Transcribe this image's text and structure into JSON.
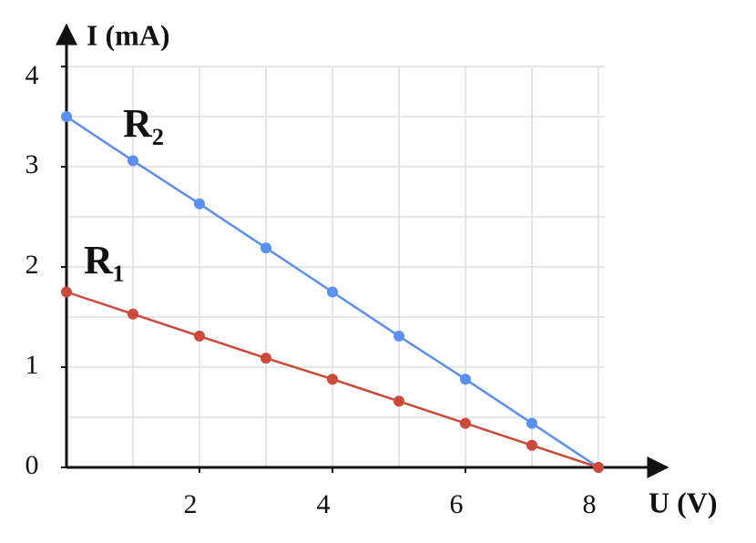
{
  "chart_data": {
    "type": "line",
    "x_label": "U (V)",
    "y_label": "I (mA)",
    "x": [
      0,
      1,
      2,
      3,
      4,
      5,
      6,
      7,
      8
    ],
    "series": [
      {
        "name": "R₂",
        "color": "#5b8ff0",
        "values": [
          3.5,
          3.06,
          2.63,
          2.19,
          1.75,
          1.31,
          0.88,
          0.44,
          0
        ]
      },
      {
        "name": "R₁",
        "color": "#cc4a3a",
        "values": [
          1.75,
          1.53,
          1.31,
          1.09,
          0.88,
          0.66,
          0.44,
          0.22,
          0
        ]
      }
    ],
    "xlim": [
      0,
      8.1
    ],
    "ylim": [
      0,
      4
    ],
    "xticks": [
      2,
      4,
      6,
      8
    ],
    "yticks": [
      0,
      1,
      2,
      3,
      4
    ],
    "xgrid": [
      1,
      2,
      3,
      4,
      5,
      6,
      7,
      8
    ],
    "ygrid": [
      0.5,
      1,
      1.5,
      2,
      2.5,
      3,
      3.5,
      4
    ],
    "grid": true
  }
}
